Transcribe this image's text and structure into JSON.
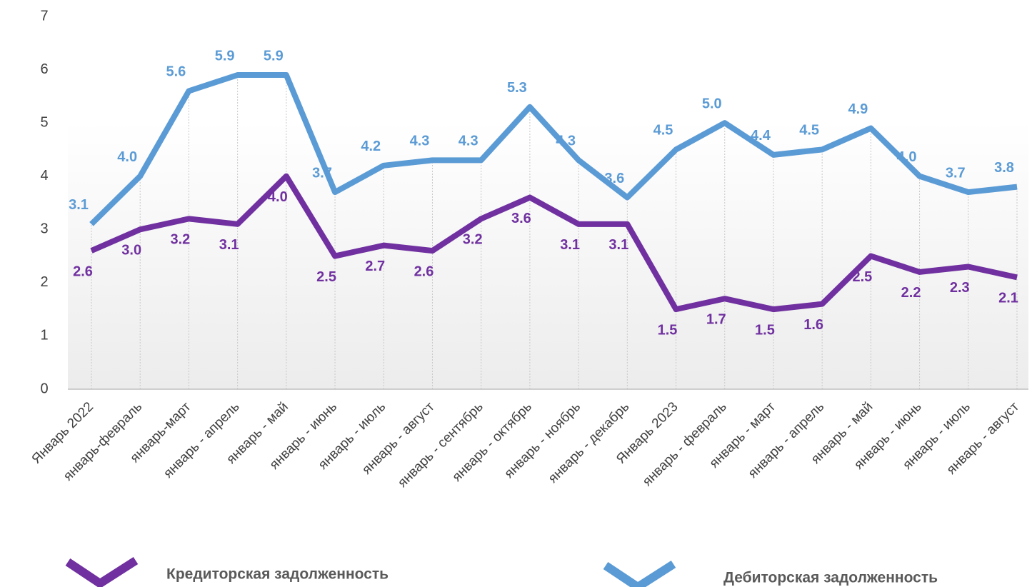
{
  "chart_data": {
    "type": "line",
    "categories": [
      "Январь 2022",
      "январь-февраль",
      "январь-март",
      "январь - апрель",
      "январь - май",
      "январь - июнь",
      "январь - июль",
      "январь - август",
      "январь - сентябрь",
      "январь - октябрь",
      "январь - ноябрь",
      "январь - декабрь",
      "Январь 2023",
      "январь - февраль",
      "январь - март",
      "январь - апрель",
      "январь - май",
      "январь - июнь",
      "январь - июль",
      "январь - август"
    ],
    "series": [
      {
        "name": "Кредиторская задолженность",
        "color": "#7030a0",
        "values": [
          2.6,
          3.0,
          3.2,
          3.1,
          4.0,
          2.5,
          2.7,
          2.6,
          3.2,
          3.6,
          3.1,
          3.1,
          1.5,
          1.7,
          1.5,
          1.6,
          2.5,
          2.2,
          2.3,
          2.1
        ],
        "value_labels": [
          "2.6",
          "3.0",
          "3.2",
          "3.1",
          "4.0",
          "2.5",
          "2.7",
          "2.6",
          "3.2",
          "3.6",
          "3.1",
          "3.1",
          "1.5",
          "1.7",
          "1.5",
          "1.6",
          "2.5",
          "2.2",
          "2.3",
          "2.1"
        ]
      },
      {
        "name": "Дебиторская задолженность",
        "color": "#5b9bd5",
        "values": [
          3.1,
          4.0,
          5.6,
          5.9,
          5.9,
          3.7,
          4.2,
          4.3,
          4.3,
          5.3,
          4.3,
          3.6,
          4.5,
          5.0,
          4.4,
          4.5,
          4.9,
          4.0,
          3.7,
          3.8
        ],
        "value_labels": [
          "3.1",
          "4.0",
          "5.6",
          "5.9",
          "5.9",
          "3.7",
          "4.2",
          "4.3",
          "4.3",
          "5.3",
          "4.3",
          "3.6",
          "4.5",
          "5.0",
          "4.4",
          "4.5",
          "4.9",
          "4.0",
          "3.7",
          "3.8"
        ]
      }
    ],
    "ylim": [
      0,
      7
    ],
    "yticks": [
      0,
      1,
      2,
      3,
      4,
      5,
      6,
      7
    ],
    "legend": "bottom"
  }
}
